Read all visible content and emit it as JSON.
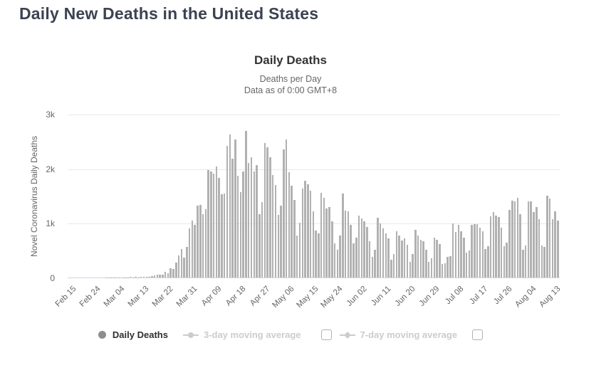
{
  "page": {
    "title": "Daily New Deaths in the United States"
  },
  "chart": {
    "title": "Daily Deaths",
    "subtitle_line1": "Deaths per Day",
    "subtitle_line2": "Data as of 0:00 GMT+8",
    "y_axis_title": "Novel Coronavirus Daily Deaths",
    "colors": {
      "bar": "#b1b1b1",
      "gridline": "#e9e9e9",
      "axis_line": "#ccd6eb",
      "tick_label": "#666666",
      "title": "#333333",
      "page_title": "#3b4252",
      "legend_active": "#2e2e2e",
      "legend_disabled": "#cccccc",
      "legend_marker_active": "#8d8d8d"
    }
  },
  "legend": {
    "items": [
      {
        "label": "Daily Deaths",
        "marker": "circle",
        "active": true,
        "checkbox": false
      },
      {
        "label": "3-day moving average",
        "marker": "line-circle",
        "active": false,
        "checkbox": true
      },
      {
        "label": "7-day moving average",
        "marker": "line-diamond",
        "active": false,
        "checkbox": true
      }
    ]
  },
  "chart_data": {
    "type": "bar",
    "title": "Daily Deaths",
    "subtitle": "Deaths per Day — Data as of 0:00 GMT+8",
    "xlabel": "",
    "ylabel": "Novel Coronavirus Daily Deaths",
    "ylim": [
      0,
      3000
    ],
    "yticks": [
      0,
      1000,
      2000,
      3000
    ],
    "ytick_labels": [
      "0",
      "1k",
      "2k",
      "3k"
    ],
    "xtick_every": 9,
    "xtick_labels": [
      "Feb 15",
      "Feb 24",
      "Mar 04",
      "Mar 13",
      "Mar 22",
      "Mar 31",
      "Apr 09",
      "Apr 18",
      "Apr 27",
      "May 06",
      "May 15",
      "May 24",
      "Jun 02",
      "Jun 11",
      "Jun 20",
      "Jun 29",
      "Jul 08",
      "Jul 17",
      "Jul 26",
      "Aug 04",
      "Aug 13"
    ],
    "grid": true,
    "legend_position": "bottom",
    "x": [
      "Feb 15",
      "Feb 16",
      "Feb 17",
      "Feb 18",
      "Feb 19",
      "Feb 20",
      "Feb 21",
      "Feb 22",
      "Feb 23",
      "Feb 24",
      "Feb 25",
      "Feb 26",
      "Feb 27",
      "Feb 28",
      "Feb 29",
      "Mar 01",
      "Mar 02",
      "Mar 03",
      "Mar 04",
      "Mar 05",
      "Mar 06",
      "Mar 07",
      "Mar 08",
      "Mar 09",
      "Mar 10",
      "Mar 11",
      "Mar 12",
      "Mar 13",
      "Mar 14",
      "Mar 15",
      "Mar 16",
      "Mar 17",
      "Mar 18",
      "Mar 19",
      "Mar 20",
      "Mar 21",
      "Mar 22",
      "Mar 23",
      "Mar 24",
      "Mar 25",
      "Mar 26",
      "Mar 27",
      "Mar 28",
      "Mar 29",
      "Mar 30",
      "Mar 31",
      "Apr 01",
      "Apr 02",
      "Apr 03",
      "Apr 04",
      "Apr 05",
      "Apr 06",
      "Apr 07",
      "Apr 08",
      "Apr 09",
      "Apr 10",
      "Apr 11",
      "Apr 12",
      "Apr 13",
      "Apr 14",
      "Apr 15",
      "Apr 16",
      "Apr 17",
      "Apr 18",
      "Apr 19",
      "Apr 20",
      "Apr 21",
      "Apr 22",
      "Apr 23",
      "Apr 24",
      "Apr 25",
      "Apr 26",
      "Apr 27",
      "Apr 28",
      "Apr 29",
      "Apr 30",
      "May 01",
      "May 02",
      "May 03",
      "May 04",
      "May 05",
      "May 06",
      "May 07",
      "May 08",
      "May 09",
      "May 10",
      "May 11",
      "May 12",
      "May 13",
      "May 14",
      "May 15",
      "May 16",
      "May 17",
      "May 18",
      "May 19",
      "May 20",
      "May 21",
      "May 22",
      "May 23",
      "May 24",
      "May 25",
      "May 26",
      "May 27",
      "May 28",
      "May 29",
      "May 30",
      "May 31",
      "Jun 01",
      "Jun 02",
      "Jun 03",
      "Jun 04",
      "Jun 05",
      "Jun 06",
      "Jun 07",
      "Jun 08",
      "Jun 09",
      "Jun 10",
      "Jun 11",
      "Jun 12",
      "Jun 13",
      "Jun 14",
      "Jun 15",
      "Jun 16",
      "Jun 17",
      "Jun 18",
      "Jun 19",
      "Jun 20",
      "Jun 21",
      "Jun 22",
      "Jun 23",
      "Jun 24",
      "Jun 25",
      "Jun 26",
      "Jun 27",
      "Jun 28",
      "Jun 29",
      "Jun 30",
      "Jul 01",
      "Jul 02",
      "Jul 03",
      "Jul 04",
      "Jul 05",
      "Jul 06",
      "Jul 07",
      "Jul 08",
      "Jul 09",
      "Jul 10",
      "Jul 11",
      "Jul 12",
      "Jul 13",
      "Jul 14",
      "Jul 15",
      "Jul 16",
      "Jul 17",
      "Jul 18",
      "Jul 19",
      "Jul 20",
      "Jul 21",
      "Jul 22",
      "Jul 23",
      "Jul 24",
      "Jul 25",
      "Jul 26",
      "Jul 27",
      "Jul 28",
      "Jul 29",
      "Jul 30",
      "Jul 31",
      "Aug 01",
      "Aug 02",
      "Aug 03",
      "Aug 04",
      "Aug 05",
      "Aug 06",
      "Aug 07",
      "Aug 08",
      "Aug 09",
      "Aug 10",
      "Aug 11",
      "Aug 12",
      "Aug 13",
      "Aug 14",
      "Aug 15"
    ],
    "values": [
      0,
      0,
      0,
      0,
      0,
      0,
      0,
      0,
      0,
      0,
      0,
      0,
      0,
      0,
      1,
      1,
      5,
      3,
      2,
      5,
      3,
      4,
      4,
      7,
      4,
      8,
      3,
      10,
      7,
      11,
      18,
      23,
      41,
      57,
      49,
      46,
      111,
      80,
      164,
      156,
      268,
      401,
      525,
      363,
      558,
      895,
      1049,
      968,
      1321,
      1331,
      1165,
      1255,
      1970,
      1940,
      1900,
      2035,
      1830,
      1528,
      1535,
      2407,
      2621,
      2176,
      2535,
      1867,
      1561,
      1939,
      2693,
      2097,
      2201,
      1947,
      2065,
      1157,
      1384,
      2470,
      2390,
      2201,
      1883,
      1691,
      1154,
      1324,
      2350,
      2528,
      1928,
      1687,
      1422,
      776,
      1008,
      1630,
      1772,
      1715,
      1595,
      1218,
      865,
      808,
      1552,
      1461,
      1263,
      1294,
      1036,
      620,
      505,
      774,
      1535,
      1223,
      1212,
      960,
      621,
      730,
      1134,
      1083,
      1031,
      921,
      670,
      373,
      510,
      1093,
      993,
      903,
      803,
      714,
      330,
      435,
      851,
      771,
      684,
      712,
      597,
      286,
      437,
      875,
      769,
      696,
      664,
      510,
      287,
      356,
      734,
      685,
      613,
      252,
      265,
      376,
      397,
      993,
      834,
      964,
      849,
      737,
      457,
      490,
      968,
      981,
      977,
      919,
      853,
      516,
      577,
      1126,
      1195,
      1140,
      1113,
      917,
      571,
      636,
      1244,
      1403,
      1400,
      1462,
      1157,
      514,
      585,
      1391,
      1401,
      1205,
      1290,
      1064,
      582,
      555,
      1504,
      1448,
      1076,
      1215,
      1047
    ],
    "series_name": "Daily Deaths",
    "bar_color": "#b1b1b1"
  }
}
